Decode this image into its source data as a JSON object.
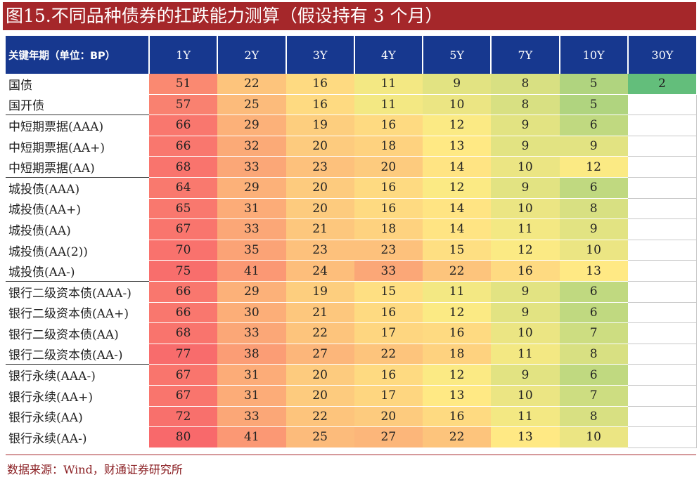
{
  "title": "图15.不同品种债券的扛跌能力测算（假设持有 3 个月）",
  "source": "数据来源：Wind，财通证券研究所",
  "chart_data": {
    "type": "heatmap",
    "header_label": "关键年期（单位：BP）",
    "columns": [
      "1Y",
      "2Y",
      "3Y",
      "4Y",
      "5Y",
      "7Y",
      "10Y",
      "30Y"
    ],
    "color_scale": {
      "low": "#63be7b",
      "mid": "#ffeb84",
      "high": "#f8696b"
    },
    "value_range": [
      2,
      80
    ],
    "rows": [
      {
        "label": "国债",
        "values": [
          51,
          22,
          16,
          11,
          9,
          8,
          5,
          2
        ],
        "group_start": false
      },
      {
        "label": "国开债",
        "values": [
          57,
          25,
          16,
          11,
          10,
          8,
          5,
          null
        ],
        "group_start": false
      },
      {
        "label": "中短期票据(AAA)",
        "values": [
          66,
          29,
          19,
          16,
          12,
          9,
          6,
          null
        ],
        "group_start": true
      },
      {
        "label": "中短期票据(AA+)",
        "values": [
          66,
          32,
          20,
          18,
          13,
          9,
          9,
          null
        ],
        "group_start": false
      },
      {
        "label": "中短期票据(AA)",
        "values": [
          68,
          33,
          23,
          20,
          14,
          10,
          12,
          null
        ],
        "group_start": false
      },
      {
        "label": "城投债(AAA)",
        "values": [
          64,
          29,
          20,
          16,
          12,
          9,
          6,
          null
        ],
        "group_start": true
      },
      {
        "label": "城投债(AA+)",
        "values": [
          65,
          31,
          20,
          16,
          14,
          10,
          8,
          null
        ],
        "group_start": false
      },
      {
        "label": "城投债(AA)",
        "values": [
          67,
          33,
          21,
          18,
          14,
          11,
          9,
          null
        ],
        "group_start": false
      },
      {
        "label": "城投债(AA(2))",
        "values": [
          70,
          35,
          23,
          23,
          15,
          12,
          10,
          null
        ],
        "group_start": false
      },
      {
        "label": "城投债(AA-)",
        "values": [
          75,
          41,
          24,
          33,
          22,
          16,
          13,
          null
        ],
        "group_start": false
      },
      {
        "label": "银行二级资本债(AAA-)",
        "values": [
          66,
          29,
          19,
          15,
          11,
          9,
          6,
          null
        ],
        "group_start": true
      },
      {
        "label": "银行二级资本债(AA+)",
        "values": [
          66,
          30,
          21,
          16,
          12,
          9,
          6,
          null
        ],
        "group_start": false
      },
      {
        "label": "银行二级资本债(AA)",
        "values": [
          68,
          33,
          22,
          17,
          16,
          10,
          7,
          null
        ],
        "group_start": false
      },
      {
        "label": "银行二级资本债(AA-)",
        "values": [
          77,
          38,
          27,
          22,
          18,
          11,
          8,
          null
        ],
        "group_start": false
      },
      {
        "label": "银行永续(AAA-)",
        "values": [
          67,
          31,
          20,
          16,
          12,
          9,
          6,
          null
        ],
        "group_start": true
      },
      {
        "label": "银行永续(AA+)",
        "values": [
          67,
          31,
          20,
          17,
          13,
          10,
          7,
          null
        ],
        "group_start": false
      },
      {
        "label": "银行永续(AA)",
        "values": [
          72,
          33,
          22,
          20,
          16,
          11,
          8,
          null
        ],
        "group_start": false
      },
      {
        "label": "银行永续(AA-)",
        "values": [
          80,
          41,
          25,
          27,
          22,
          13,
          10,
          null
        ],
        "group_start": false
      }
    ]
  }
}
